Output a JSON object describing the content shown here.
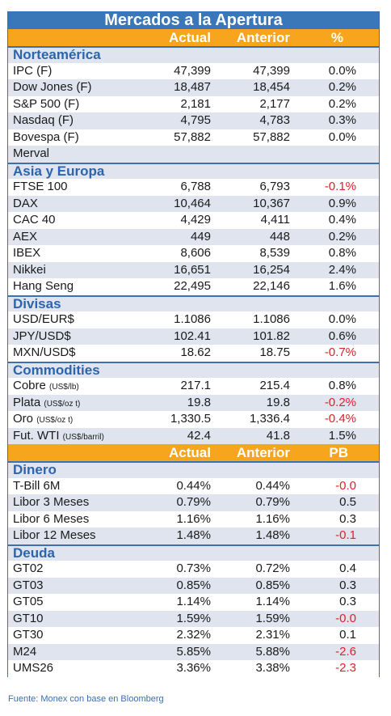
{
  "title": "Mercados a la Apertura",
  "header1": {
    "actual": "Actual",
    "anterior": "Anterior",
    "pct": "%"
  },
  "header2": {
    "actual": "Actual",
    "anterior": "Anterior",
    "pct": "PB"
  },
  "sections": {
    "norteamerica": {
      "label": "Norteamérica",
      "rows": [
        {
          "name": "IPC (F)",
          "actual": "47,399",
          "anterior": "47,399",
          "pct": "0.0%",
          "neg": false
        },
        {
          "name": "Dow Jones (F)",
          "actual": "18,487",
          "anterior": "18,454",
          "pct": "0.2%",
          "neg": false
        },
        {
          "name": "S&P 500 (F)",
          "actual": "2,181",
          "anterior": "2,177",
          "pct": "0.2%",
          "neg": false
        },
        {
          "name": "Nasdaq (F)",
          "actual": "4,795",
          "anterior": "4,783",
          "pct": "0.3%",
          "neg": false
        },
        {
          "name": "Bovespa (F)",
          "actual": "57,882",
          "anterior": "57,882",
          "pct": "0.0%",
          "neg": false
        },
        {
          "name": "Merval",
          "actual": "",
          "anterior": "",
          "pct": "",
          "neg": false
        }
      ]
    },
    "asia": {
      "label": "Asia y Europa",
      "rows": [
        {
          "name": "FTSE 100",
          "actual": "6,788",
          "anterior": "6,793",
          "pct": "-0.1%",
          "neg": true
        },
        {
          "name": "DAX",
          "actual": "10,464",
          "anterior": "10,367",
          "pct": "0.9%",
          "neg": false
        },
        {
          "name": "CAC 40",
          "actual": "4,429",
          "anterior": "4,411",
          "pct": "0.4%",
          "neg": false
        },
        {
          "name": "AEX",
          "actual": "449",
          "anterior": "448",
          "pct": "0.2%",
          "neg": false
        },
        {
          "name": "IBEX",
          "actual": "8,606",
          "anterior": "8,539",
          "pct": "0.8%",
          "neg": false
        },
        {
          "name": "Nikkei",
          "actual": "16,651",
          "anterior": "16,254",
          "pct": "2.4%",
          "neg": false
        },
        {
          "name": "Hang Seng",
          "actual": "22,495",
          "anterior": "22,146",
          "pct": "1.6%",
          "neg": false
        }
      ]
    },
    "divisas": {
      "label": "Divisas",
      "rows": [
        {
          "name": "USD/EUR$",
          "actual": "1.1086",
          "anterior": "1.1086",
          "pct": "0.0%",
          "neg": false
        },
        {
          "name": "JPY/USD$",
          "actual": "102.41",
          "anterior": "101.82",
          "pct": "0.6%",
          "neg": false
        },
        {
          "name": "MXN/USD$",
          "actual": "18.62",
          "anterior": "18.75",
          "pct": "-0.7%",
          "neg": true
        }
      ]
    },
    "commodities": {
      "label": "Commodities",
      "rows": [
        {
          "name": "Cobre",
          "unit": "(US$/lb)",
          "actual": "217.1",
          "anterior": "215.4",
          "pct": "0.8%",
          "neg": false
        },
        {
          "name": "Plata",
          "unit": "(US$/oz t)",
          "actual": "19.8",
          "anterior": "19.8",
          "pct": "-0.2%",
          "neg": true
        },
        {
          "name": "Oro",
          "unit": "(US$/oz t)",
          "actual": "1,330.5",
          "anterior": "1,336.4",
          "pct": "-0.4%",
          "neg": true
        },
        {
          "name": "Fut. WTI",
          "unit": "(US$/barril)",
          "actual": "42.4",
          "anterior": "41.8",
          "pct": "1.5%",
          "neg": false
        }
      ]
    },
    "dinero": {
      "label": "Dinero",
      "rows": [
        {
          "name": "T-Bill 6M",
          "actual": "0.44%",
          "anterior": "0.44%",
          "pct": "-0.0",
          "neg": true
        },
        {
          "name": "Libor 3 Meses",
          "actual": "0.79%",
          "anterior": "0.79%",
          "pct": "0.5",
          "neg": false
        },
        {
          "name": "Libor 6 Meses",
          "actual": "1.16%",
          "anterior": "1.16%",
          "pct": "0.3",
          "neg": false
        },
        {
          "name": "Libor 12 Meses",
          "actual": "1.48%",
          "anterior": "1.48%",
          "pct": "-0.1",
          "neg": true
        }
      ]
    },
    "deuda": {
      "label": "Deuda",
      "rows": [
        {
          "name": "GT02",
          "actual": "0.73%",
          "anterior": "0.72%",
          "pct": "0.4",
          "neg": false
        },
        {
          "name": "GT03",
          "actual": "0.85%",
          "anterior": "0.85%",
          "pct": "0.3",
          "neg": false
        },
        {
          "name": "GT05",
          "actual": "1.14%",
          "anterior": "1.14%",
          "pct": "0.3",
          "neg": false
        },
        {
          "name": "GT10",
          "actual": "1.59%",
          "anterior": "1.59%",
          "pct": "-0.0",
          "neg": true
        },
        {
          "name": "GT30",
          "actual": "2.32%",
          "anterior": "2.31%",
          "pct": "0.1",
          "neg": false
        },
        {
          "name": "M24",
          "actual": "5.85%",
          "anterior": "5.88%",
          "pct": "-2.6",
          "neg": true
        },
        {
          "name": "UMS26",
          "actual": "3.36%",
          "anterior": "3.38%",
          "pct": "-2.3",
          "neg": true
        }
      ]
    }
  },
  "footer": "Fuente: Monex con base en Bloomberg",
  "colors": {
    "title_bg": "#3977b9",
    "header_bg": "#f6a51c",
    "row_alt": "#dfe4ef",
    "negative": "#e0202a"
  }
}
